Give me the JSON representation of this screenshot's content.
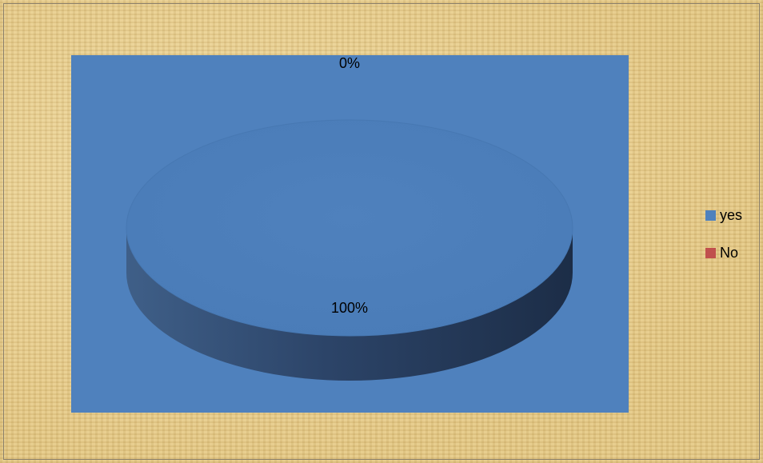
{
  "chart_data": {
    "type": "pie",
    "categories": [
      "yes",
      "No"
    ],
    "values": [
      100,
      0
    ],
    "data_labels": [
      "100%",
      "0%"
    ],
    "colors": [
      "#4f81bd",
      "#c0504d"
    ],
    "title": "",
    "legend_position": "right",
    "style": "3d"
  },
  "legend": {
    "items": [
      {
        "label": "yes",
        "color": "#4f81bd"
      },
      {
        "label": "No",
        "color": "#c0504d"
      }
    ]
  }
}
